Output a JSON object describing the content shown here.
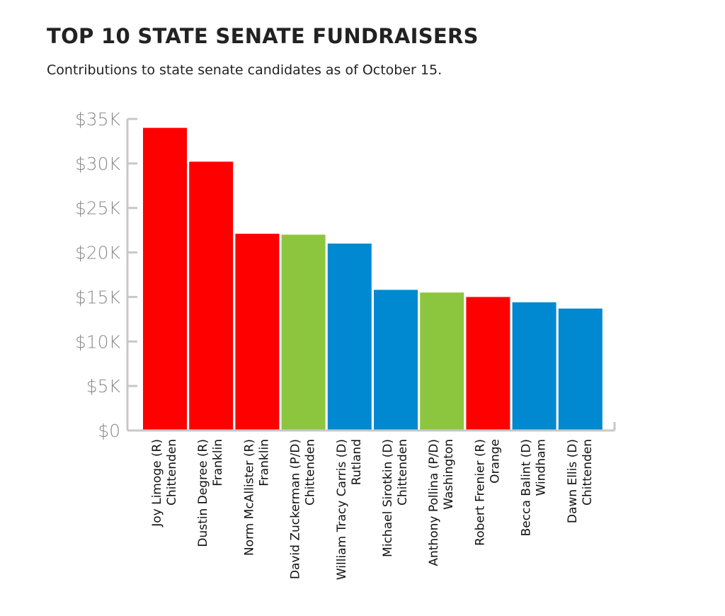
{
  "chart_data": {
    "type": "bar",
    "title": "TOP 10 STATE SENATE FUNDRAISERS",
    "subtitle": "Contributions to state senate candidates as of October 15.",
    "xlabel": "",
    "ylabel": "",
    "ylim": [
      0,
      35000
    ],
    "yticks": [
      {
        "value": 0,
        "label": "$0"
      },
      {
        "value": 5000,
        "label": "$5K"
      },
      {
        "value": 10000,
        "label": "$10K"
      },
      {
        "value": 15000,
        "label": "$15K"
      },
      {
        "value": 20000,
        "label": "$20K"
      },
      {
        "value": 25000,
        "label": "$25K"
      },
      {
        "value": 30000,
        "label": "$30K"
      },
      {
        "value": 35000,
        "label": "$35K"
      }
    ],
    "grid": false,
    "categories": [
      {
        "name": "Joy Limoge (R)",
        "county": "Chittenden",
        "party": "R"
      },
      {
        "name": "Dustin Degree (R)",
        "county": "Franklin",
        "party": "R"
      },
      {
        "name": "Norm McAllister (R)",
        "county": "Franklin",
        "party": "R"
      },
      {
        "name": "David Zuckerman (P/D)",
        "county": "Chittenden",
        "party": "P/D"
      },
      {
        "name": "William Tracy Carris (D)",
        "county": "Rutland",
        "party": "D"
      },
      {
        "name": "Michael Sirotkin (D)",
        "county": "Chittenden",
        "party": "D"
      },
      {
        "name": "Anthony Pollina (P/D)",
        "county": "Washington",
        "party": "P/D"
      },
      {
        "name": "Robert Frenier (R)",
        "county": "Orange",
        "party": "R"
      },
      {
        "name": "Becca Balint (D)",
        "county": "Windham",
        "party": "D"
      },
      {
        "name": "Dawn Ellis (D)",
        "county": "Chittenden",
        "party": "D"
      }
    ],
    "values": [
      34000,
      30200,
      22100,
      22000,
      21000,
      15800,
      15500,
      15000,
      14400,
      13700
    ],
    "party_colors": {
      "R": "#ff0000",
      "P/D": "#8cc63f",
      "D": "#0088d1"
    },
    "axis_color": "#c8c8c8"
  }
}
